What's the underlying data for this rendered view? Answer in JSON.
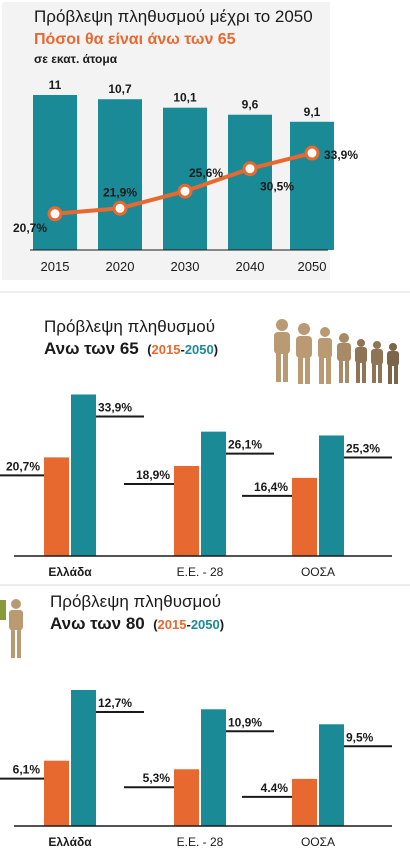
{
  "colors": {
    "teal": "#1a8b96",
    "orange": "#e8692f",
    "silhouette": "#b99a72",
    "panel_bg": "#f3f3f3"
  },
  "chart_data": [
    {
      "type": "bar",
      "title": "Πρόβλεψη πληθυσμού μέχρι το 2050",
      "subtitle": "Πόσοι θα είναι άνω των 65",
      "unit": "σε εκατ. άτομα",
      "categories": [
        "2015",
        "2020",
        "2030",
        "2040",
        "2050"
      ],
      "series": [
        {
          "values": [
            11,
            10.7,
            10.1,
            9.6,
            9.1
          ],
          "labels": [
            "11",
            "10,7",
            "10,1",
            "9,6",
            "9,1"
          ]
        },
        {
          "values": [
            20.7,
            21.9,
            25.6,
            30.5,
            33.9
          ],
          "labels": [
            "20,7%",
            "21,9%",
            "25,6%",
            "30,5%",
            "33,9%"
          ],
          "type": "line"
        }
      ],
      "ylim": [
        0,
        11
      ]
    },
    {
      "type": "bar",
      "title": "Πρόβλεψη πληθυσμού",
      "subtitle": "Ανω των 65",
      "range": {
        "open": "(",
        "start": "2015",
        "dash": "-",
        "end": "2050",
        "close": ")"
      },
      "categories": [
        "Ελλάδα",
        "Ε.Ε. - 28",
        "ΟΟΣΑ"
      ],
      "series": [
        {
          "name": "2015",
          "values": [
            20.7,
            18.9,
            16.4
          ],
          "labels": [
            "20,7%",
            "18,9%",
            "16,4%"
          ]
        },
        {
          "name": "2050",
          "values": [
            33.9,
            26.1,
            25.3
          ],
          "labels": [
            "33,9%",
            "26,1%",
            "25,3%"
          ]
        }
      ],
      "ylim": [
        0,
        34
      ]
    },
    {
      "type": "bar",
      "title": "Πρόβλεψη πληθυσμού",
      "subtitle": "Ανω των 80",
      "range": {
        "open": "(",
        "start": "2015",
        "dash": "-",
        "end": "2050",
        "close": ")"
      },
      "categories": [
        "Ελλάδα",
        "Ε.Ε. - 28",
        "ΟΟΣΑ"
      ],
      "series": [
        {
          "name": "2015",
          "values": [
            6.1,
            5.3,
            4.4
          ],
          "labels": [
            "6,1%",
            "5,3%",
            "4.4%"
          ]
        },
        {
          "name": "2050",
          "values": [
            12.7,
            10.9,
            9.5
          ],
          "labels": [
            "12,7%",
            "10,9%",
            "9,5%"
          ]
        }
      ],
      "ylim": [
        0,
        12.7
      ]
    }
  ]
}
